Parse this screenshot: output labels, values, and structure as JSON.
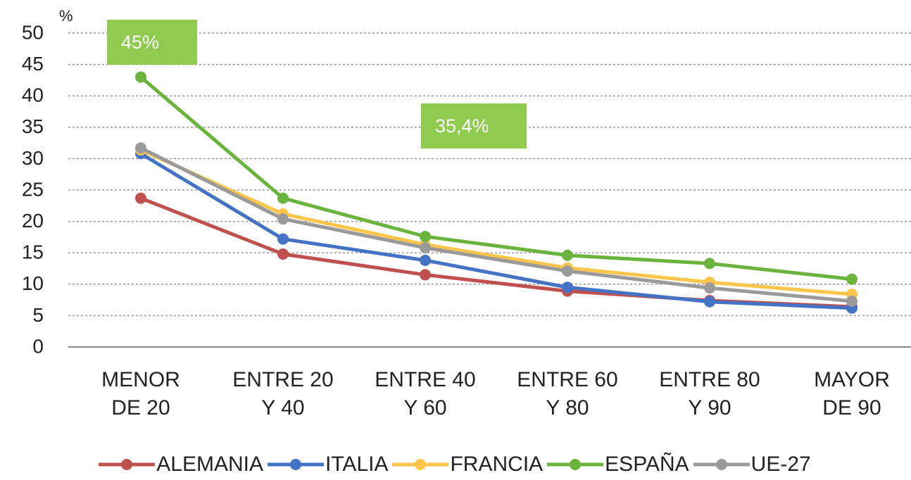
{
  "chart_data": {
    "type": "line",
    "y_label": "%",
    "categories": [
      "MENOR\nDE 20",
      "ENTRE 20\nY 40",
      "ENTRE 40\nY 60",
      "ENTRE 60\nY 80",
      "ENTRE 80\nY 90",
      "MAYOR\nDE 90"
    ],
    "series": [
      {
        "name": "ALEMANIA",
        "color": "#c0504d",
        "values": [
          23.7,
          14.8,
          11.5,
          8.9,
          7.4,
          6.4
        ]
      },
      {
        "name": "ITALIA",
        "color": "#4472c4",
        "values": [
          30.8,
          17.2,
          13.8,
          9.5,
          7.2,
          6.2
        ]
      },
      {
        "name": "FRANCIA",
        "color": "#fdc64a",
        "values": [
          31.4,
          21.2,
          16.3,
          12.6,
          10.3,
          8.4
        ]
      },
      {
        "name": "ESPAÑA",
        "color": "#6ab43e",
        "values": [
          43,
          23.7,
          17.6,
          14.6,
          13.3,
          10.8
        ]
      },
      {
        "name": "UE-27",
        "color": "#9a9a9a",
        "values": [
          31.7,
          20.4,
          15.8,
          12.1,
          9.4,
          7.3
        ]
      }
    ],
    "ylim": [
      0,
      50
    ],
    "yticks": [
      0,
      5,
      10,
      15,
      20,
      25,
      30,
      35,
      40,
      45,
      50
    ],
    "grid": true,
    "annotations": [
      "45%",
      "35,4%"
    ]
  }
}
